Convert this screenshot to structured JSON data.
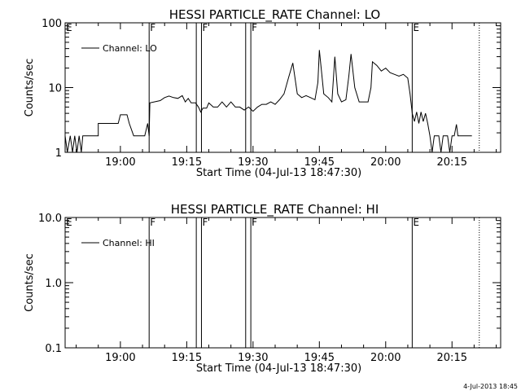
{
  "footer_timestamp": "4-Jul-2013 18:45",
  "chart_data": [
    {
      "type": "line",
      "title": "HESSI PARTICLE_RATE Channel: LO",
      "xlabel": "Start Time (04-Jul-13 18:47:30)",
      "ylabel": "Counts/sec",
      "yscale": "log",
      "ylim": [
        1,
        100
      ],
      "xlim": [
        "18:47:30",
        "20:26:00"
      ],
      "x_ticks": [
        "19:00",
        "19:15",
        "19:30",
        "19:45",
        "20:00",
        "20:15"
      ],
      "y_ticks": [
        "1",
        "10",
        "100"
      ],
      "grid": false,
      "legend": "top-left",
      "series": [
        {
          "name": "Channel: LO",
          "color": "#000000",
          "points": [
            [
              "18:47:30",
              1.8
            ],
            [
              "18:48:00",
              1.0
            ],
            [
              "18:48:40",
              1.8
            ],
            [
              "18:49:10",
              1.0
            ],
            [
              "18:49:40",
              1.8
            ],
            [
              "18:50:10",
              1.0
            ],
            [
              "18:50:40",
              1.8
            ],
            [
              "18:51:10",
              1.0
            ],
            [
              "18:51:30",
              1.8
            ],
            [
              "18:55:00",
              1.8
            ],
            [
              "18:55:00",
              2.8
            ],
            [
              "18:59:30",
              2.8
            ],
            [
              "19:00:00",
              3.8
            ],
            [
              "19:01:30",
              3.8
            ],
            [
              "19:02:00",
              2.8
            ],
            [
              "19:03:00",
              1.8
            ],
            [
              "19:05:30",
              1.8
            ],
            [
              "19:06:10",
              2.8
            ],
            [
              "19:06:30",
              1.8
            ],
            [
              "19:06:40",
              5.8
            ],
            [
              "19:09:00",
              6.3
            ],
            [
              "19:10:00",
              7.0
            ],
            [
              "19:11:00",
              7.4
            ],
            [
              "19:12:00",
              7.0
            ],
            [
              "19:13:00",
              6.8
            ],
            [
              "19:14:00",
              7.5
            ],
            [
              "19:14:40",
              6.0
            ],
            [
              "19:15:20",
              6.8
            ],
            [
              "19:16:00",
              5.8
            ],
            [
              "19:17:00",
              5.8
            ],
            [
              "19:17:40",
              5.0
            ],
            [
              "19:18:10",
              4.2
            ],
            [
              "19:18:40",
              4.8
            ],
            [
              "19:19:30",
              4.8
            ],
            [
              "19:20:00",
              5.8
            ],
            [
              "19:21:00",
              5.0
            ],
            [
              "19:22:00",
              5.0
            ],
            [
              "19:23:00",
              6.0
            ],
            [
              "19:24:00",
              5.0
            ],
            [
              "19:25:00",
              6.0
            ],
            [
              "19:26:00",
              5.0
            ],
            [
              "19:27:00",
              5.0
            ],
            [
              "19:28:00",
              4.5
            ],
            [
              "19:29:00",
              5.0
            ],
            [
              "19:30:00",
              4.3
            ],
            [
              "19:31:00",
              5.0
            ],
            [
              "19:32:00",
              5.5
            ],
            [
              "19:33:00",
              5.5
            ],
            [
              "19:34:00",
              6.0
            ],
            [
              "19:35:00",
              5.5
            ],
            [
              "19:36:00",
              6.5
            ],
            [
              "19:37:00",
              8.0
            ],
            [
              "19:38:00",
              14.0
            ],
            [
              "19:39:00",
              24.0
            ],
            [
              "19:40:00",
              8.0
            ],
            [
              "19:41:00",
              7.0
            ],
            [
              "19:42:00",
              7.5
            ],
            [
              "19:43:00",
              7.0
            ],
            [
              "19:44:00",
              6.5
            ],
            [
              "19:44:40",
              12.0
            ],
            [
              "19:45:00",
              38.0
            ],
            [
              "19:46:00",
              8.0
            ],
            [
              "19:47:00",
              7.0
            ],
            [
              "19:47:50",
              6.0
            ],
            [
              "19:48:30",
              30.0
            ],
            [
              "19:49:10",
              8.0
            ],
            [
              "19:50:00",
              6.0
            ],
            [
              "19:51:00",
              6.5
            ],
            [
              "19:51:40",
              15.0
            ],
            [
              "19:52:10",
              33.0
            ],
            [
              "19:53:00",
              10.0
            ],
            [
              "19:54:00",
              6.0
            ],
            [
              "19:55:00",
              6.0
            ],
            [
              "19:56:00",
              6.0
            ],
            [
              "19:56:40",
              10.0
            ],
            [
              "19:57:00",
              25.0
            ],
            [
              "19:58:00",
              22.0
            ],
            [
              "19:59:00",
              18.0
            ],
            [
              "20:00:00",
              20.0
            ],
            [
              "20:01:00",
              17.0
            ],
            [
              "20:02:00",
              16.0
            ],
            [
              "20:03:00",
              15.0
            ],
            [
              "20:04:00",
              16.0
            ],
            [
              "20:05:00",
              14.0
            ],
            [
              "20:05:30",
              8.0
            ],
            [
              "20:06:00",
              4.0
            ],
            [
              "20:06:30",
              3.0
            ],
            [
              "20:07:00",
              4.2
            ],
            [
              "20:07:30",
              2.8
            ],
            [
              "20:08:00",
              4.2
            ],
            [
              "20:08:30",
              3.0
            ],
            [
              "20:09:00",
              4.0
            ],
            [
              "20:09:30",
              2.8
            ],
            [
              "20:10:00",
              1.8
            ],
            [
              "20:10:30",
              1.0
            ],
            [
              "20:11:00",
              1.8
            ],
            [
              "20:12:00",
              1.8
            ],
            [
              "20:12:30",
              1.0
            ],
            [
              "20:13:00",
              1.8
            ],
            [
              "20:14:00",
              1.8
            ],
            [
              "20:14:30",
              1.0
            ],
            [
              "20:15:00",
              1.8
            ],
            [
              "20:15:30",
              1.8
            ],
            [
              "20:16:00",
              2.7
            ],
            [
              "20:16:20",
              1.8
            ],
            [
              "20:19:30",
              1.8
            ]
          ]
        }
      ],
      "flag_lines": [
        {
          "label": "E",
          "time": "18:47:30",
          "style": "solid"
        },
        {
          "label": "F",
          "time": "19:06:30",
          "style": "solid"
        },
        {
          "label": "",
          "time": "19:17:10",
          "style": "solid"
        },
        {
          "label": "F",
          "time": "19:18:20",
          "style": "solid"
        },
        {
          "label": "",
          "time": "19:28:20",
          "style": "solid"
        },
        {
          "label": "F",
          "time": "19:29:30",
          "style": "solid"
        },
        {
          "label": "E",
          "time": "20:06:00",
          "style": "solid"
        },
        {
          "label": "",
          "time": "20:21:10",
          "style": "dotted"
        }
      ]
    },
    {
      "type": "line",
      "title": "HESSI PARTICLE_RATE Channel: HI",
      "xlabel": "Start Time (04-Jul-13 18:47:30)",
      "ylabel": "Counts/sec",
      "yscale": "log",
      "ylim": [
        0.1,
        10.0
      ],
      "xlim": [
        "18:47:30",
        "20:26:00"
      ],
      "x_ticks": [
        "19:00",
        "19:15",
        "19:30",
        "19:45",
        "20:00",
        "20:15"
      ],
      "y_ticks": [
        "0.1",
        "1.0",
        "10.0"
      ],
      "grid": false,
      "legend": "top-left",
      "series": [
        {
          "name": "Channel: HI",
          "color": "#000000",
          "points": []
        }
      ],
      "flag_lines": [
        {
          "label": "E",
          "time": "18:47:30",
          "style": "solid"
        },
        {
          "label": "F",
          "time": "19:06:30",
          "style": "solid"
        },
        {
          "label": "",
          "time": "19:17:10",
          "style": "solid"
        },
        {
          "label": "F",
          "time": "19:18:20",
          "style": "solid"
        },
        {
          "label": "",
          "time": "19:28:20",
          "style": "solid"
        },
        {
          "label": "F",
          "time": "19:29:30",
          "style": "solid"
        },
        {
          "label": "E",
          "time": "20:06:00",
          "style": "solid"
        },
        {
          "label": "",
          "time": "20:21:10",
          "style": "dotted"
        }
      ]
    }
  ]
}
